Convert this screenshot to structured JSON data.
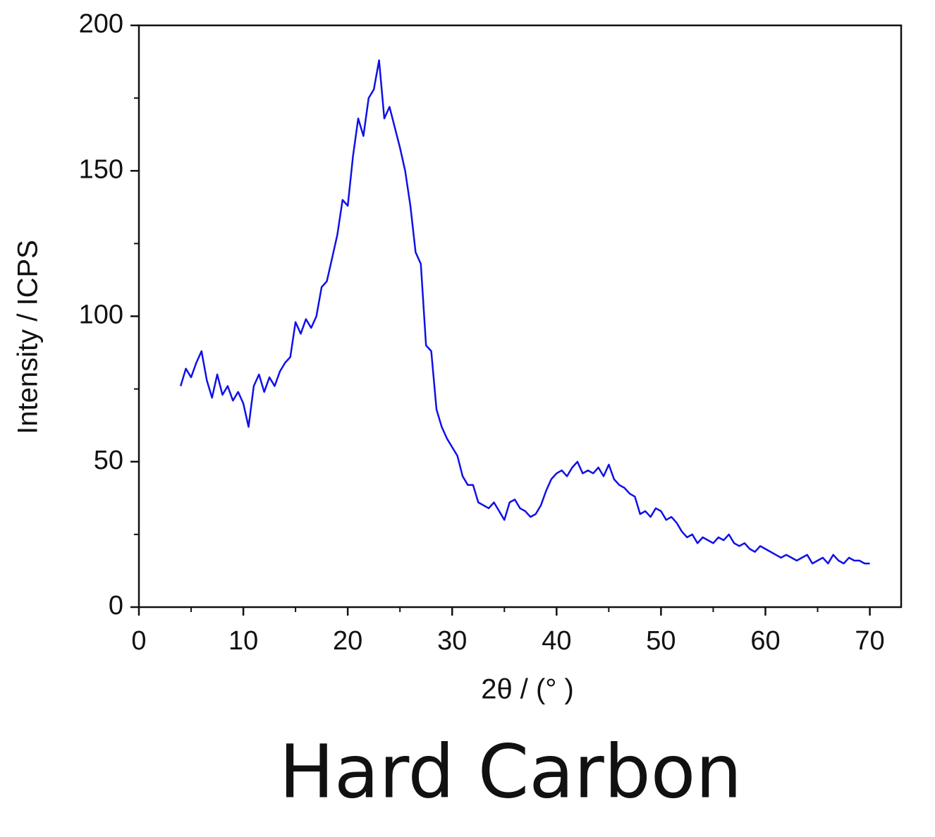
{
  "chart_data": {
    "type": "line",
    "title": "Hard Carbon",
    "x_label": "2θ / (°  )",
    "y_label": "Intensity / ICPS",
    "color": "#1010e8",
    "xlim": [
      0,
      73
    ],
    "ylim": [
      0,
      200
    ],
    "xticks": [
      0,
      10,
      20,
      30,
      40,
      50,
      60,
      70
    ],
    "yticks": [
      0,
      50,
      100,
      150,
      200
    ],
    "xminorticks": [
      5,
      15,
      25,
      35,
      45,
      55,
      65
    ],
    "yminorticks": [
      25,
      75,
      125,
      175
    ],
    "x": [
      4,
      4.5,
      5,
      5.5,
      6,
      6.5,
      7,
      7.5,
      8,
      8.5,
      9,
      9.5,
      10,
      10.5,
      11,
      11.5,
      12,
      12.5,
      13,
      13.5,
      14,
      14.5,
      15,
      15.5,
      16,
      16.5,
      17,
      17.5,
      18,
      18.5,
      19,
      19.5,
      20,
      20.5,
      21,
      21.5,
      22,
      22.5,
      23,
      23.5,
      24,
      24.5,
      25,
      25.5,
      26,
      26.5,
      27,
      27.5,
      28,
      28.5,
      29,
      29.5,
      30,
      30.5,
      31,
      31.5,
      32,
      32.5,
      33,
      33.5,
      34,
      34.5,
      35,
      35.5,
      36,
      36.5,
      37,
      37.5,
      38,
      38.5,
      39,
      39.5,
      40,
      40.5,
      41,
      41.5,
      42,
      42.5,
      43,
      43.5,
      44,
      44.5,
      45,
      45.5,
      46,
      46.5,
      47,
      47.5,
      48,
      48.5,
      49,
      49.5,
      50,
      50.5,
      51,
      51.5,
      52,
      52.5,
      53,
      53.5,
      54,
      54.5,
      55,
      55.5,
      56,
      56.5,
      57,
      57.5,
      58,
      58.5,
      59,
      59.5,
      60,
      60.5,
      61,
      61.5,
      62,
      62.5,
      63,
      63.5,
      64,
      64.5,
      65,
      65.5,
      66,
      66.5,
      67,
      67.5,
      68,
      68.5,
      69,
      69.5,
      70
    ],
    "values": [
      76,
      82,
      79,
      84,
      88,
      78,
      72,
      80,
      73,
      76,
      71,
      74,
      70,
      62,
      76,
      80,
      74,
      79,
      76,
      81,
      84,
      86,
      98,
      94,
      99,
      96,
      100,
      110,
      112,
      120,
      128,
      140,
      138,
      155,
      168,
      162,
      175,
      178,
      188,
      168,
      172,
      165,
      158,
      150,
      138,
      122,
      118,
      90,
      88,
      68,
      62,
      58,
      55,
      52,
      45,
      42,
      42,
      36,
      35,
      34,
      36,
      33,
      30,
      36,
      37,
      34,
      33,
      31,
      32,
      35,
      40,
      44,
      46,
      47,
      45,
      48,
      50,
      46,
      47,
      46,
      48,
      45,
      49,
      44,
      42,
      41,
      39,
      38,
      32,
      33,
      31,
      34,
      33,
      30,
      31,
      29,
      26,
      24,
      25,
      22,
      24,
      23,
      22,
      24,
      23,
      25,
      22,
      21,
      22,
      20,
      19,
      21,
      20,
      19,
      18,
      17,
      18,
      17,
      16,
      17,
      18,
      15,
      16,
      17,
      15,
      18,
      16,
      15,
      17,
      16,
      16,
      15,
      15
    ]
  }
}
